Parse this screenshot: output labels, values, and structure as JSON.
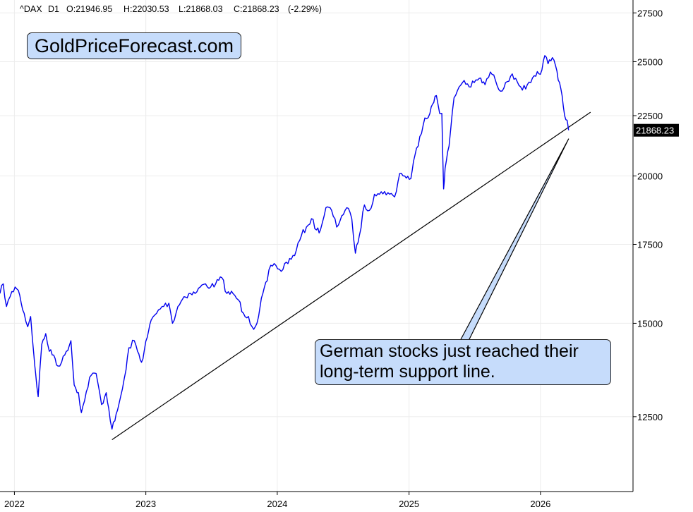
{
  "header": {
    "symbol": "^DAX",
    "timeframe": "D1",
    "open": "O:21946.95",
    "high": "H:22030.53",
    "low": "L:21868.03",
    "close": "C:21868.23",
    "change": "(-2.29%)"
  },
  "brand": {
    "text": "GoldPriceForecast.com"
  },
  "annotation": {
    "text": "German stocks just reached their long-term support line."
  },
  "price_tag": {
    "text": "21868.23",
    "value": 21868.23
  },
  "colors": {
    "price_line": "#0000ee",
    "support_line": "#000000",
    "callout_fill": "#c6dcfb",
    "grid": "#ececec"
  },
  "chart_data": {
    "type": "line",
    "title": "",
    "xlabel": "",
    "ylabel": "",
    "scale": "log",
    "ylim": [
      10800,
      28200
    ],
    "xlim": [
      "2021-11-22",
      "2026-09-15"
    ],
    "x_ticks": [
      "2022",
      "2023",
      "2024",
      "2025",
      "2026"
    ],
    "y_ticks": [
      12500,
      15000,
      17500,
      20000,
      22500,
      25000,
      27500
    ],
    "grid": true,
    "series": [
      {
        "name": "",
        "x": [
          "2021-11-22",
          "2021-12-01",
          "2021-12-10",
          "2021-12-20",
          "2022-01-03",
          "2022-01-12",
          "2022-01-20",
          "2022-01-28",
          "2022-02-07",
          "2022-02-15",
          "2022-02-24",
          "2022-03-01",
          "2022-03-08",
          "2022-03-18",
          "2022-03-29",
          "2022-04-08",
          "2022-04-20",
          "2022-05-02",
          "2022-05-12",
          "2022-05-25",
          "2022-06-07",
          "2022-06-16",
          "2022-06-28",
          "2022-07-06",
          "2022-07-15",
          "2022-07-29",
          "2022-08-16",
          "2022-08-31",
          "2022-09-13",
          "2022-09-20",
          "2022-09-29",
          "2022-10-07",
          "2022-10-18",
          "2022-10-28",
          "2022-11-07",
          "2022-11-15",
          "2022-11-30",
          "2022-12-09",
          "2022-12-20",
          "2023-01-05",
          "2023-01-16",
          "2023-01-31",
          "2023-02-15",
          "2023-03-06",
          "2023-03-16",
          "2023-03-31",
          "2023-04-17",
          "2023-05-05",
          "2023-05-18",
          "2023-06-01",
          "2023-06-16",
          "2023-06-30",
          "2023-07-14",
          "2023-07-31",
          "2023-08-14",
          "2023-08-31",
          "2023-09-15",
          "2023-09-29",
          "2023-10-13",
          "2023-10-23",
          "2023-11-01",
          "2023-11-10",
          "2023-11-22",
          "2023-12-04",
          "2023-12-14",
          "2023-12-28",
          "2024-01-12",
          "2024-01-26",
          "2024-02-09",
          "2024-02-23",
          "2024-03-08",
          "2024-03-22",
          "2024-04-05",
          "2024-04-19",
          "2024-04-30",
          "2024-05-15",
          "2024-05-31",
          "2024-06-14",
          "2024-06-28",
          "2024-07-12",
          "2024-07-26",
          "2024-08-05",
          "2024-08-16",
          "2024-08-30",
          "2024-09-13",
          "2024-09-27",
          "2024-10-11",
          "2024-10-25",
          "2024-11-08",
          "2024-11-22",
          "2024-12-06",
          "2024-12-20",
          "2025-01-06",
          "2025-01-17",
          "2025-01-31",
          "2025-02-14",
          "2025-02-28",
          "2025-03-07",
          "2025-03-18",
          "2025-03-27",
          "2025-04-02",
          "2025-04-07",
          "2025-04-11",
          "2025-04-22",
          "2025-05-06",
          "2025-05-20",
          "2025-06-03",
          "2025-06-17",
          "2025-07-01",
          "2025-07-15",
          "2025-07-31",
          "2025-08-15",
          "2025-08-29",
          "2025-09-12",
          "2025-09-26",
          "2025-10-10",
          "2025-10-24",
          "2025-11-07",
          "2025-11-21",
          "2025-12-05",
          "2025-12-19",
          "2026-01-05",
          "2026-01-13",
          "2026-01-22",
          "2026-02-03",
          "2026-02-12",
          "2026-02-23",
          "2026-03-02",
          "2026-03-09",
          "2026-03-16",
          "2026-03-20"
        ],
        "y": [
          15900,
          16200,
          15500,
          15800,
          16100,
          16000,
          15600,
          15300,
          14900,
          15200,
          14100,
          13600,
          13000,
          14400,
          14700,
          14200,
          14100,
          13800,
          13900,
          14200,
          14500,
          13300,
          13100,
          12600,
          12900,
          13500,
          13600,
          12800,
          13100,
          12700,
          12200,
          12400,
          12800,
          13200,
          13700,
          14300,
          14500,
          14200,
          13900,
          14600,
          15100,
          15300,
          15500,
          15600,
          15000,
          15500,
          15800,
          15900,
          15900,
          16100,
          16200,
          16100,
          16200,
          16400,
          15900,
          15900,
          15700,
          15300,
          15200,
          14900,
          14900,
          15200,
          15900,
          16300,
          16800,
          16800,
          16600,
          16900,
          17000,
          17300,
          17800,
          18100,
          18400,
          18000,
          18000,
          18800,
          18700,
          18100,
          18500,
          18800,
          18400,
          17200,
          17800,
          18900,
          18700,
          19300,
          19300,
          19400,
          19300,
          19200,
          20100,
          20000,
          19900,
          20800,
          21600,
          22400,
          22600,
          23000,
          23400,
          22600,
          22600,
          19500,
          20300,
          21200,
          23300,
          23800,
          24100,
          23800,
          24000,
          24200,
          23900,
          24500,
          24100,
          23600,
          24000,
          24300,
          24200,
          23800,
          23700,
          24000,
          24300,
          24600,
          25300,
          24900,
          25200,
          24800,
          24000,
          23400,
          22500,
          22300,
          21868.23
        ]
      }
    ],
    "support_line": {
      "from": {
        "x": "2022-09-29",
        "y": 11950
      },
      "to": {
        "x": "2026-05-20",
        "y": 22650
      }
    },
    "pointer": {
      "target": {
        "x": "2026-03-20",
        "y": 21500
      }
    }
  }
}
